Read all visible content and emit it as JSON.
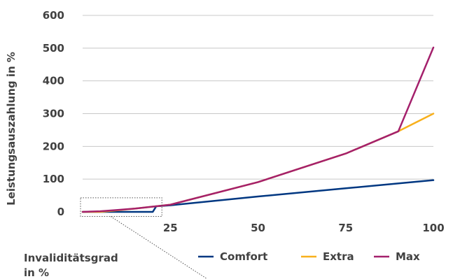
{
  "chart_data": {
    "type": "line",
    "title": "",
    "xlabel_line1": "Invaliditätsgrad",
    "xlabel_line2": "in %",
    "ylabel": "Leistungsauszahlung in %",
    "xlim": [
      0,
      100
    ],
    "ylim": [
      0,
      600
    ],
    "x_ticks": [
      25,
      50,
      75,
      100
    ],
    "y_ticks": [
      0,
      100,
      200,
      300,
      400,
      500,
      600
    ],
    "grid": "horizontal",
    "legend_position": "bottom-right",
    "series": [
      {
        "name": "Comfort",
        "color": "#003781",
        "points": [
          [
            0,
            0
          ],
          [
            19,
            0
          ],
          [
            20,
            0
          ],
          [
            21,
            17
          ],
          [
            25,
            20
          ],
          [
            50,
            47
          ],
          [
            75,
            72
          ],
          [
            100,
            97
          ]
        ]
      },
      {
        "name": "Extra",
        "color": "#F8B01C",
        "points": [
          [
            0,
            0
          ],
          [
            5,
            0
          ],
          [
            10,
            5
          ],
          [
            15,
            10
          ],
          [
            20,
            16
          ],
          [
            25,
            22
          ],
          [
            50,
            91
          ],
          [
            75,
            178
          ],
          [
            90,
            246
          ],
          [
            100,
            300
          ]
        ]
      },
      {
        "name": "Max",
        "color": "#A4206C",
        "points": [
          [
            0,
            0
          ],
          [
            5,
            2
          ],
          [
            10,
            6
          ],
          [
            15,
            10
          ],
          [
            20,
            16
          ],
          [
            25,
            22
          ],
          [
            50,
            91
          ],
          [
            75,
            178
          ],
          [
            90,
            246
          ],
          [
            100,
            502
          ]
        ]
      }
    ],
    "annotation": {
      "type": "zoom-box",
      "x_range": [
        0,
        22
      ],
      "y_range": [
        -14,
        43
      ]
    }
  }
}
